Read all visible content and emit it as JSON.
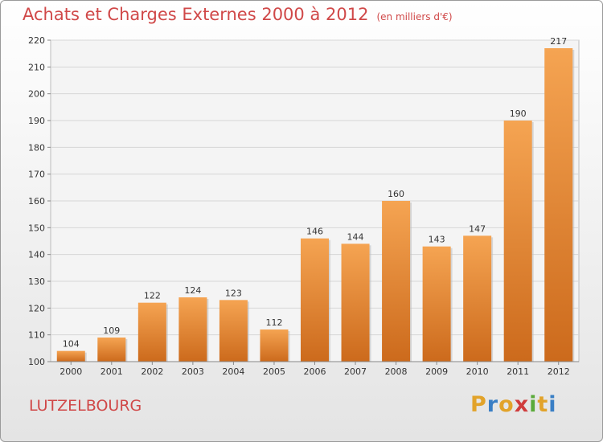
{
  "header": {
    "title": "Achats et Charges Externes 2000 à 2012",
    "unit": "(en milliers d'€)"
  },
  "footer": {
    "town": "LUTZELBOURG",
    "logo_letters": [
      "P",
      "r",
      "o",
      "x",
      "i",
      "t",
      "i"
    ],
    "logo_colors": [
      "#e2a32a",
      "#3a7fc5",
      "#e2a32a",
      "#d03c3c",
      "#5aaa3a",
      "#e2a32a",
      "#3a7fc5"
    ]
  },
  "chart_data": {
    "type": "bar",
    "categories": [
      "2000",
      "2001",
      "2002",
      "2003",
      "2004",
      "2005",
      "2006",
      "2007",
      "2008",
      "2009",
      "2010",
      "2011",
      "2012"
    ],
    "values": [
      104,
      109,
      122,
      124,
      123,
      112,
      146,
      144,
      160,
      143,
      147,
      190,
      217
    ],
    "ylim": [
      100,
      220
    ],
    "yticks": [
      100,
      110,
      120,
      130,
      140,
      150,
      160,
      170,
      180,
      190,
      200,
      210,
      220
    ],
    "grid": true,
    "bar_color_top": "#f5a452",
    "bar_color_bottom": "#cc6a1c"
  }
}
